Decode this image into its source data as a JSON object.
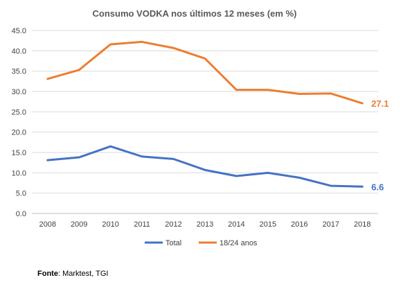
{
  "chart_data": {
    "type": "line",
    "title": "Consumo VODKA nos últimos 12 meses (em %)",
    "xlabel": "",
    "ylabel": "",
    "categories": [
      "2008",
      "2009",
      "2010",
      "2011",
      "2012",
      "2013",
      "2014",
      "2015",
      "2016",
      "2017",
      "2018"
    ],
    "ylim": [
      0,
      45
    ],
    "yticks": [
      "0.0",
      "5.0",
      "10.0",
      "15.0",
      "20.0",
      "25.0",
      "30.0",
      "35.0",
      "40.0",
      "45.0"
    ],
    "grid": true,
    "legend_position": "bottom",
    "series": [
      {
        "name": "Total",
        "color": "#4472C4",
        "values": [
          13.1,
          13.8,
          16.5,
          14.0,
          13.4,
          10.7,
          9.2,
          10.0,
          8.8,
          6.8,
          6.6
        ],
        "end_label": "6.6"
      },
      {
        "name": "18/24 anos",
        "color": "#ED7D31",
        "values": [
          33.1,
          35.3,
          41.6,
          42.2,
          40.7,
          38.1,
          30.4,
          30.4,
          29.4,
          29.5,
          27.1
        ],
        "end_label": "27.1"
      }
    ]
  },
  "source": {
    "label": "Fonte",
    "text": ": Marktest, TGI"
  }
}
